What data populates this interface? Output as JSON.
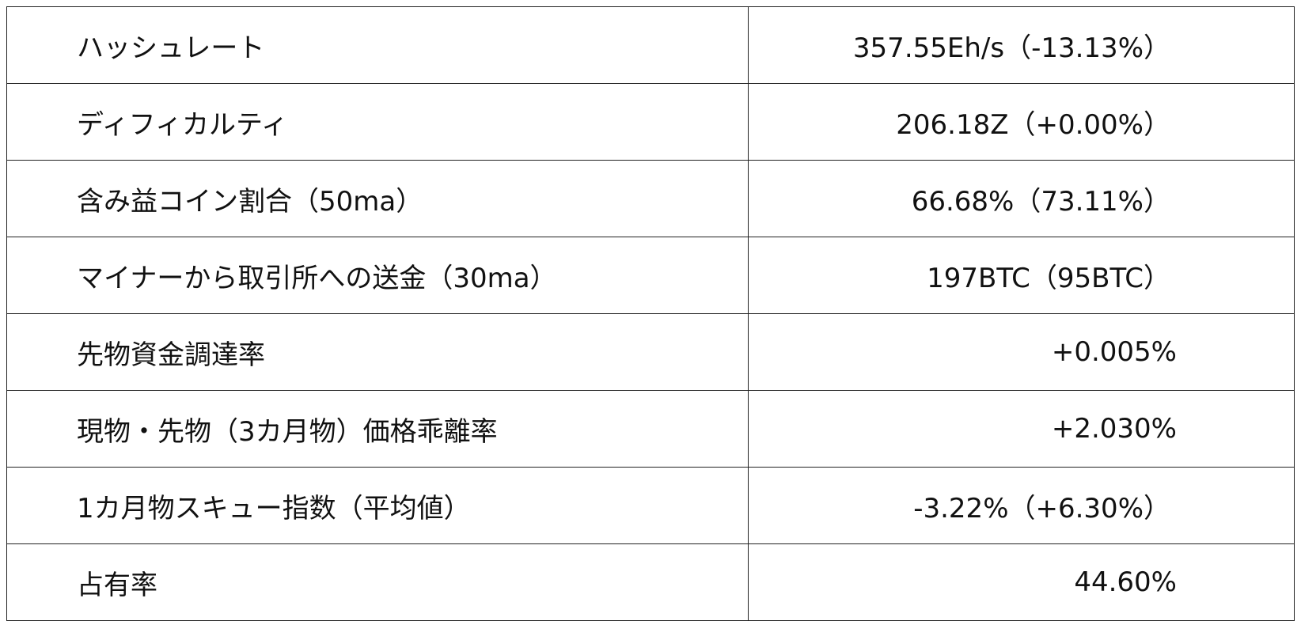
{
  "rows": [
    {
      "label": "ハッシュレート",
      "value": "357.55Eh/s（-13.13%）"
    },
    {
      "label": "ディフィカルティ",
      "value": "206.18Z（+0.00%）"
    },
    {
      "label": "含み益コイン割合（50ma）",
      "value": "66.68%（73.11%）"
    },
    {
      "label": "マイナーから取引所への送金（30ma）",
      "value": "197BTC（95BTC）"
    },
    {
      "label": "先物資金調達率",
      "value": "+0.005%"
    },
    {
      "label": "現物・先物（3カ月物）価格乖離率",
      "value": "+2.030%"
    },
    {
      "label": "1カ月物スキュー指数（平均値）",
      "value": "-3.22%（+6.30%）"
    },
    {
      "label": "占有率",
      "value": "44.60%"
    }
  ]
}
